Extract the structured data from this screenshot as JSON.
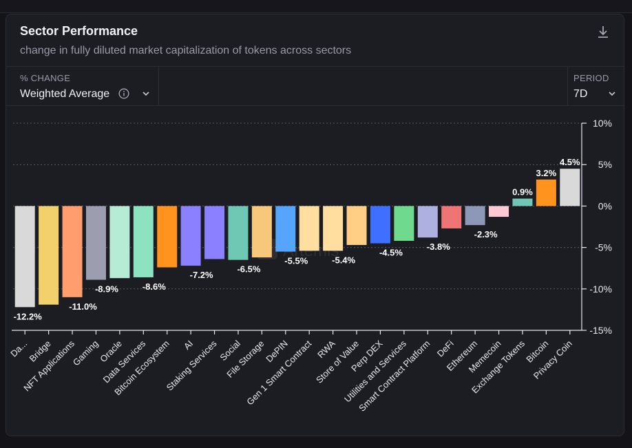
{
  "header": {
    "title": "Sector Performance",
    "subtitle": "change in fully diluted market capitalization of tokens across sectors"
  },
  "controls": {
    "metric_label": "% CHANGE",
    "metric_value": "Weighted Average",
    "period_label": "PERIOD",
    "period_value": "7D"
  },
  "icons": {
    "download": "download-icon",
    "info": "info-icon",
    "chevron": "chevron-down-icon"
  },
  "watermark": "Artemis",
  "chart_data": {
    "type": "bar",
    "ylim": [
      -15,
      10
    ],
    "yticks": [
      10,
      5,
      0,
      -5,
      -10,
      -15
    ],
    "ytick_labels": [
      "10%",
      "5%",
      "0%",
      "-5%",
      "-10%",
      "-15%"
    ],
    "grid": true,
    "categories": [
      "Da...",
      "Bridge",
      "NFT Applications",
      "Gaming",
      "Oracle",
      "Data Services",
      "Bitcoin Ecosystem",
      "AI",
      "Staking Services",
      "Social",
      "File Storage",
      "DePIN",
      "Gen 1 Smart Contract",
      "RWA",
      "Store of Value",
      "Perp DEX",
      "Utilities and Services",
      "Smart Contract Platform",
      "DeFi",
      "Ethereum",
      "Memecoin",
      "Exchange Tokens",
      "Bitcoin",
      "Privacy Coin"
    ],
    "values": [
      -12.2,
      -11.9,
      -11.0,
      -8.9,
      -8.7,
      -8.6,
      -7.4,
      -7.2,
      -6.4,
      -6.5,
      -6.2,
      -5.5,
      -5.4,
      -5.4,
      -4.7,
      -4.5,
      -4.2,
      -3.8,
      -2.7,
      -2.3,
      -1.3,
      0.9,
      3.2,
      4.5
    ],
    "data_labels": [
      "-12.2%",
      "",
      "-11.0%",
      "-8.9%",
      "",
      "-8.6%",
      "",
      "-7.2%",
      "",
      "-6.5%",
      "",
      "-5.5%",
      "",
      "-5.4%",
      "",
      "-4.5%",
      "",
      "-3.8%",
      "",
      "-2.3%",
      "",
      "0.9%",
      "3.2%",
      "4.5%"
    ],
    "colors": [
      "#d9d9d9",
      "#f2d06b",
      "#ff9d6e",
      "#9d9db0",
      "#b6ecd6",
      "#8de3bf",
      "#ff931e",
      "#8b80ff",
      "#8b80ff",
      "#6fc8b4",
      "#f7c77c",
      "#55a5ff",
      "#ffdea0",
      "#ffdea0",
      "#ffcf85",
      "#3f6fff",
      "#6fd98d",
      "#aeb0e0",
      "#ef7474",
      "#8d97b8",
      "#ffc8d3",
      "#6fc8b4",
      "#ff931e",
      "#d9d9d9"
    ]
  }
}
